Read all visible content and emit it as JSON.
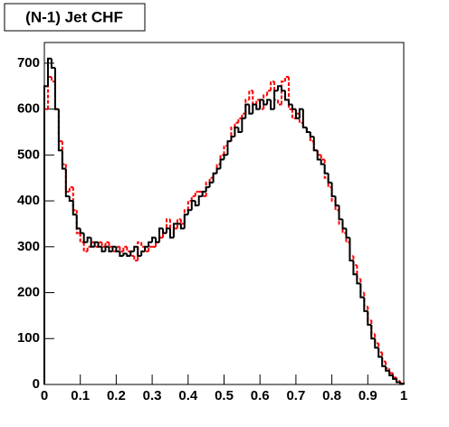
{
  "chart_data": {
    "type": "histogram",
    "title": "(N-1) Jet CHF",
    "bins": [
      0,
      0.01,
      0.02,
      0.03,
      0.04,
      0.05,
      0.06,
      0.07,
      0.08,
      0.09,
      0.1,
      0.11,
      0.12,
      0.13,
      0.14,
      0.15,
      0.16,
      0.17,
      0.18,
      0.19,
      0.2,
      0.21,
      0.22,
      0.23,
      0.24,
      0.25,
      0.26,
      0.27,
      0.28,
      0.29,
      0.3,
      0.31,
      0.32,
      0.33,
      0.34,
      0.35,
      0.36,
      0.37,
      0.38,
      0.39,
      0.4,
      0.41,
      0.42,
      0.43,
      0.44,
      0.45,
      0.46,
      0.47,
      0.48,
      0.49,
      0.5,
      0.51,
      0.52,
      0.53,
      0.54,
      0.55,
      0.56,
      0.57,
      0.58,
      0.59,
      0.6,
      0.61,
      0.62,
      0.63,
      0.64,
      0.65,
      0.66,
      0.67,
      0.68,
      0.69,
      0.7,
      0.71,
      0.72,
      0.73,
      0.74,
      0.75,
      0.76,
      0.77,
      0.78,
      0.79,
      0.8,
      0.81,
      0.82,
      0.83,
      0.84,
      0.85,
      0.86,
      0.87,
      0.88,
      0.89,
      0.9,
      0.91,
      0.92,
      0.93,
      0.94,
      0.95,
      0.96,
      0.97,
      0.98,
      0.99,
      1
    ],
    "series": [
      {
        "color": "#000000",
        "dashed": false,
        "values": [
          650,
          710,
          690,
          600,
          510,
          470,
          410,
          400,
          370,
          340,
          330,
          310,
          320,
          300,
          310,
          300,
          290,
          300,
          290,
          300,
          290,
          280,
          285,
          280,
          290,
          300,
          280,
          290,
          300,
          310,
          320,
          310,
          340,
          330,
          340,
          320,
          350,
          350,
          340,
          370,
          380,
          400,
          390,
          410,
          420,
          430,
          440,
          460,
          470,
          490,
          500,
          530,
          540,
          560,
          550,
          580,
          610,
          590,
          610,
          600,
          620,
          610,
          620,
          600,
          640,
          650,
          640,
          620,
          610,
          600,
          580,
          600,
          560,
          550,
          540,
          510,
          490,
          480,
          460,
          440,
          410,
          390,
          360,
          340,
          320,
          270,
          240,
          220,
          190,
          160,
          130,
          100,
          80,
          60,
          40,
          30,
          20,
          12,
          5,
          2
        ]
      },
      {
        "color": "#ff0000",
        "dashed": true,
        "values": [
          600,
          670,
          660,
          600,
          530,
          480,
          420,
          430,
          380,
          330,
          310,
          290,
          300,
          310,
          300,
          310,
          300,
          310,
          300,
          290,
          300,
          290,
          300,
          290,
          280,
          270,
          310,
          300,
          290,
          300,
          300,
          310,
          320,
          330,
          360,
          330,
          340,
          360,
          350,
          380,
          400,
          410,
          420,
          420,
          410,
          440,
          450,
          460,
          480,
          500,
          520,
          530,
          560,
          570,
          580,
          590,
          620,
          640,
          610,
          620,
          600,
          630,
          640,
          660,
          620,
          610,
          660,
          670,
          600,
          580,
          590,
          570,
          560,
          550,
          530,
          510,
          500,
          490,
          450,
          430,
          400,
          380,
          350,
          330,
          310,
          280,
          260,
          230,
          200,
          170,
          140,
          110,
          90,
          70,
          50,
          35,
          25,
          15,
          8,
          3
        ]
      }
    ],
    "xlim": [
      0,
      1
    ],
    "xticks": [
      0,
      0.1,
      0.2,
      0.3,
      0.4,
      0.5,
      0.6,
      0.7,
      0.8,
      0.9,
      1
    ],
    "ylim": [
      0,
      745
    ],
    "yticks": [
      0,
      100,
      200,
      300,
      400,
      500,
      600,
      700
    ]
  }
}
